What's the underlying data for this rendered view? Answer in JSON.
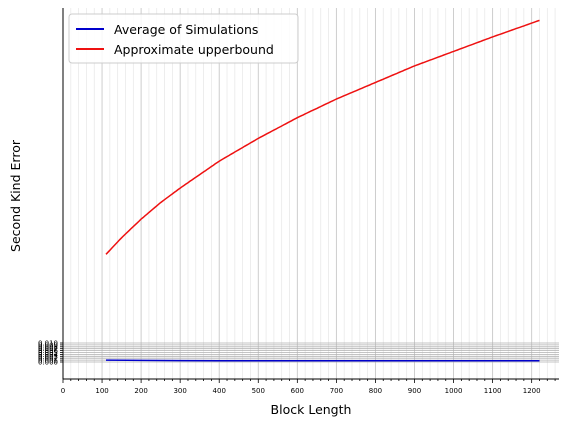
{
  "chart_data": {
    "type": "line",
    "xlabel": "Block Length",
    "ylabel": "Second Kind Error",
    "xlim": [
      0,
      1270
    ],
    "x_ticks_major": [
      0,
      100,
      200,
      300,
      400,
      500,
      600,
      700,
      800,
      900,
      1000,
      1100,
      1200
    ],
    "x_ticks_minor_step": 20,
    "grid": true,
    "legend_position": "top-left",
    "y_ticks": [
      "0.000",
      "0.001",
      "0.002",
      "0.003",
      "0.004",
      "0.005",
      "0.006",
      "0.007",
      "0.008",
      "0.009",
      "0.010"
    ],
    "y_range_note": "tick labels overlap near 0; upper curve rises far above",
    "series": [
      {
        "name": "Average of Simulations",
        "color": "#0000cc",
        "x": [
          110,
          200,
          300,
          400,
          500,
          600,
          700,
          800,
          900,
          1000,
          1100,
          1220
        ],
        "y": [
          0.0009,
          0.0006,
          0.0004,
          0.0003,
          0.0003,
          0.0002,
          0.0002,
          0.0002,
          0.0002,
          0.0002,
          0.0002,
          0.0002
        ]
      },
      {
        "name": "Approximate upperbound",
        "color": "#ee1111",
        "x": [
          110,
          150,
          200,
          250,
          300,
          400,
          500,
          600,
          700,
          800,
          900,
          1000,
          1100,
          1220
        ],
        "y": [
          0.52,
          0.6,
          0.69,
          0.77,
          0.84,
          0.97,
          1.08,
          1.18,
          1.27,
          1.35,
          1.43,
          1.5,
          1.57,
          1.65
        ]
      }
    ]
  }
}
